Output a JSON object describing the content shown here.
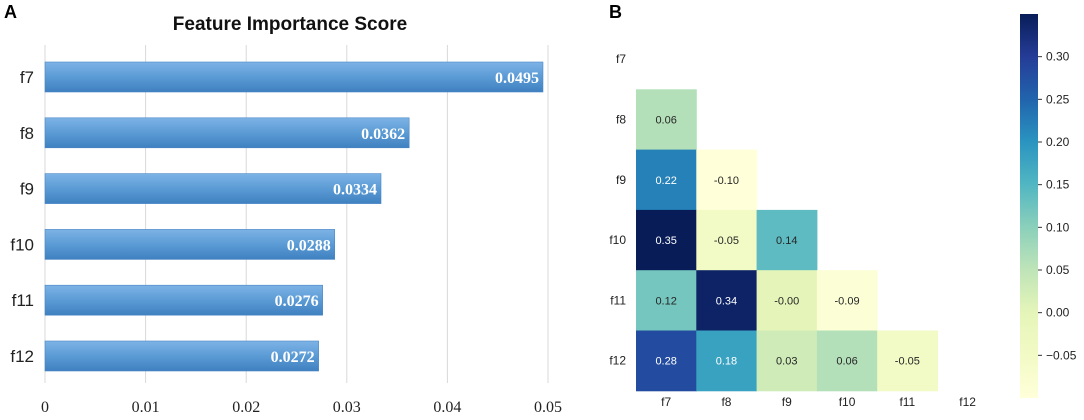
{
  "panel_a_label": "A",
  "panel_b_label": "B",
  "chart_data": [
    {
      "type": "bar",
      "orientation": "horizontal",
      "title": "Feature Importance Score",
      "categories": [
        "f7",
        "f8",
        "f9",
        "f10",
        "f11",
        "f12"
      ],
      "values": [
        0.0495,
        0.0362,
        0.0334,
        0.0288,
        0.0276,
        0.0272
      ],
      "value_labels": [
        "0.0495",
        "0.0362",
        "0.0334",
        "0.0288",
        "0.0276",
        "0.0272"
      ],
      "xlim": [
        0,
        0.05
      ],
      "xticks": [
        "0",
        "0.01",
        "0.02",
        "0.03",
        "0.04",
        "0.05"
      ],
      "xlabel": "",
      "ylabel": "",
      "grid": "vertical",
      "bar_color": "#5b9bd5"
    },
    {
      "type": "heatmap",
      "title": "",
      "mask": "lower-triangle",
      "rows": [
        "f7",
        "f8",
        "f9",
        "f10",
        "f11",
        "f12"
      ],
      "cols": [
        "f7",
        "f8",
        "f9",
        "f10",
        "f11",
        "f12"
      ],
      "cells": [
        {
          "row": "f8",
          "col": "f7",
          "value": 0.06,
          "label": "0.06"
        },
        {
          "row": "f9",
          "col": "f7",
          "value": 0.22,
          "label": "0.22"
        },
        {
          "row": "f9",
          "col": "f8",
          "value": -0.1,
          "label": "-0.10"
        },
        {
          "row": "f10",
          "col": "f7",
          "value": 0.35,
          "label": "0.35"
        },
        {
          "row": "f10",
          "col": "f8",
          "value": -0.05,
          "label": "-0.05"
        },
        {
          "row": "f10",
          "col": "f9",
          "value": 0.14,
          "label": "0.14"
        },
        {
          "row": "f11",
          "col": "f7",
          "value": 0.12,
          "label": "0.12"
        },
        {
          "row": "f11",
          "col": "f8",
          "value": 0.34,
          "label": "0.34"
        },
        {
          "row": "f11",
          "col": "f9",
          "value": -0.0,
          "label": "-0.00"
        },
        {
          "row": "f11",
          "col": "f10",
          "value": -0.09,
          "label": "-0.09"
        },
        {
          "row": "f12",
          "col": "f7",
          "value": 0.28,
          "label": "0.28"
        },
        {
          "row": "f12",
          "col": "f8",
          "value": 0.18,
          "label": "0.18"
        },
        {
          "row": "f12",
          "col": "f9",
          "value": 0.03,
          "label": "0.03"
        },
        {
          "row": "f12",
          "col": "f10",
          "value": 0.06,
          "label": "0.06"
        },
        {
          "row": "f12",
          "col": "f11",
          "value": -0.05,
          "label": "-0.05"
        }
      ],
      "colormap": "YlGnBu",
      "colorbar": {
        "range": [
          -0.1,
          0.35
        ],
        "ticks": [
          0.3,
          0.25,
          0.2,
          0.15,
          0.1,
          0.05,
          0.0,
          -0.05
        ],
        "tick_labels": [
          "0.30",
          "0.25",
          "0.20",
          "0.15",
          "0.10",
          "0.05",
          "0.00",
          "−0.05"
        ]
      }
    }
  ]
}
